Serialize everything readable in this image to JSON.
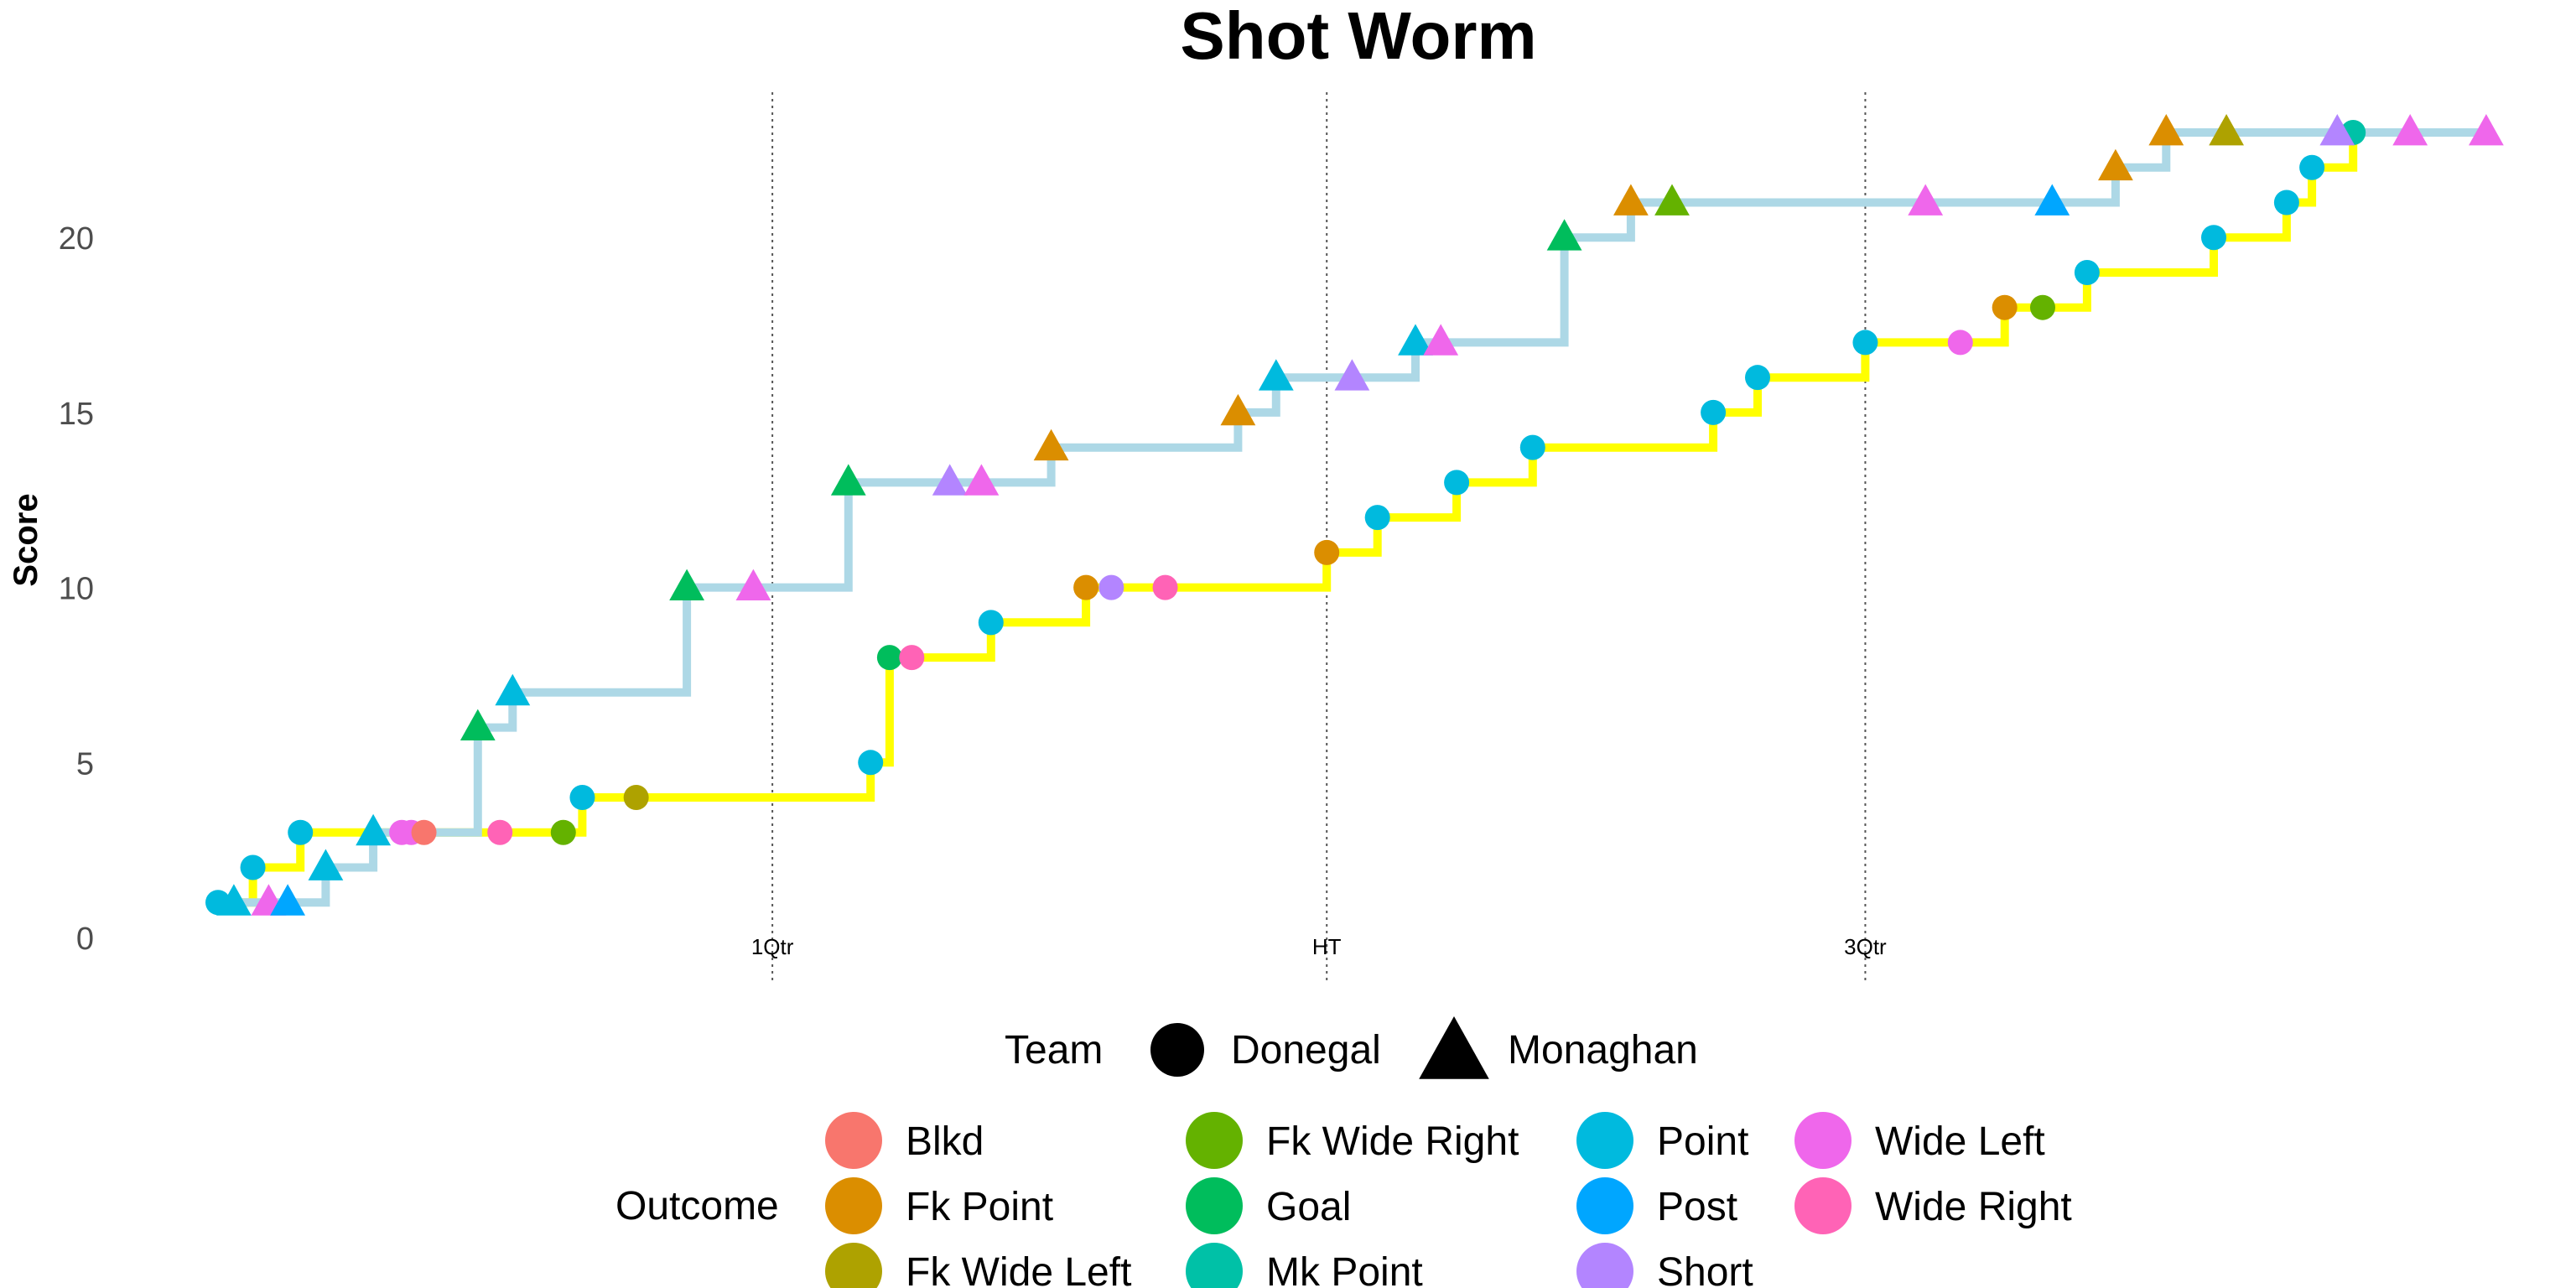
{
  "chart_data": {
    "type": "line",
    "subtype": "step",
    "title": "Shot Worm",
    "xlabel": "",
    "ylabel": "Score",
    "x_unit": "minutes",
    "xlim": [
      0,
      72
    ],
    "ylim": [
      0,
      23
    ],
    "y_ticks": [
      0,
      5,
      10,
      15,
      20
    ],
    "grid": false,
    "x_markers": [
      {
        "label": "1Qtr",
        "x": 17.5
      },
      {
        "label": "HT",
        "x": 35
      },
      {
        "label": "3Qtr",
        "x": 52
      }
    ],
    "team_legend": {
      "title": "Team",
      "entries": [
        {
          "name": "Donegal",
          "shape": "circle"
        },
        {
          "name": "Monaghan",
          "shape": "triangle"
        }
      ]
    },
    "outcome_legend": {
      "title": "Outcome",
      "entries": [
        {
          "name": "Blkd",
          "color": "#F8766D"
        },
        {
          "name": "Fk Point",
          "color": "#DB8E00"
        },
        {
          "name": "Fk Wide Left",
          "color": "#AEA200"
        },
        {
          "name": "Fk Wide Right",
          "color": "#64B200"
        },
        {
          "name": "Goal",
          "color": "#00BD5C"
        },
        {
          "name": "Mk Point",
          "color": "#00C1A7"
        },
        {
          "name": "Point",
          "color": "#00BADE"
        },
        {
          "name": "Post",
          "color": "#00A6FF"
        },
        {
          "name": "Short",
          "color": "#B385FF"
        },
        {
          "name": "Wide Left",
          "color": "#EF67EB"
        },
        {
          "name": "Wide Right",
          "color": "#FF63B6"
        }
      ]
    },
    "series": [
      {
        "name": "Donegal",
        "shape": "circle",
        "line_color": "#FFFF00",
        "points": [
          {
            "x": 0.0,
            "y": 1,
            "outcome": "Point"
          },
          {
            "x": 1.1,
            "y": 2,
            "outcome": "Point"
          },
          {
            "x": 2.6,
            "y": 3,
            "outcome": "Point"
          },
          {
            "x": 5.8,
            "y": 3,
            "outcome": "Wide Left"
          },
          {
            "x": 6.1,
            "y": 3,
            "outcome": "Wide Left"
          },
          {
            "x": 6.5,
            "y": 3,
            "outcome": "Blkd"
          },
          {
            "x": 8.9,
            "y": 3,
            "outcome": "Wide Right"
          },
          {
            "x": 10.9,
            "y": 3,
            "outcome": "Fk Wide Right"
          },
          {
            "x": 11.5,
            "y": 4,
            "outcome": "Point"
          },
          {
            "x": 13.2,
            "y": 4,
            "outcome": "Fk Wide Left"
          },
          {
            "x": 20.6,
            "y": 5,
            "outcome": "Point"
          },
          {
            "x": 21.2,
            "y": 8,
            "outcome": "Goal"
          },
          {
            "x": 21.9,
            "y": 8,
            "outcome": "Wide Right"
          },
          {
            "x": 24.4,
            "y": 9,
            "outcome": "Point"
          },
          {
            "x": 27.4,
            "y": 10,
            "outcome": "Fk Point"
          },
          {
            "x": 28.2,
            "y": 10,
            "outcome": "Short"
          },
          {
            "x": 29.9,
            "y": 10,
            "outcome": "Wide Right"
          },
          {
            "x": 35.0,
            "y": 11,
            "outcome": "Fk Point"
          },
          {
            "x": 36.6,
            "y": 12,
            "outcome": "Point"
          },
          {
            "x": 39.1,
            "y": 13,
            "outcome": "Point"
          },
          {
            "x": 41.5,
            "y": 14,
            "outcome": "Point"
          },
          {
            "x": 47.2,
            "y": 15,
            "outcome": "Point"
          },
          {
            "x": 48.6,
            "y": 16,
            "outcome": "Point"
          },
          {
            "x": 52.0,
            "y": 17,
            "outcome": "Point"
          },
          {
            "x": 55.0,
            "y": 17,
            "outcome": "Wide Left"
          },
          {
            "x": 56.4,
            "y": 18,
            "outcome": "Fk Point"
          },
          {
            "x": 57.6,
            "y": 18,
            "outcome": "Fk Wide Right"
          },
          {
            "x": 59.0,
            "y": 19,
            "outcome": "Point"
          },
          {
            "x": 63.0,
            "y": 20,
            "outcome": "Point"
          },
          {
            "x": 65.3,
            "y": 21,
            "outcome": "Point"
          },
          {
            "x": 66.1,
            "y": 22,
            "outcome": "Point"
          },
          {
            "x": 67.4,
            "y": 23,
            "outcome": "Mk Point"
          }
        ]
      },
      {
        "name": "Monaghan",
        "shape": "triangle",
        "line_color": "#ADD8E6",
        "points": [
          {
            "x": 0.5,
            "y": 1,
            "outcome": "Point"
          },
          {
            "x": 1.6,
            "y": 1,
            "outcome": "Wide Left"
          },
          {
            "x": 2.2,
            "y": 1,
            "outcome": "Post"
          },
          {
            "x": 3.4,
            "y": 2,
            "outcome": "Point"
          },
          {
            "x": 4.9,
            "y": 3,
            "outcome": "Point"
          },
          {
            "x": 8.2,
            "y": 6,
            "outcome": "Goal"
          },
          {
            "x": 9.3,
            "y": 7,
            "outcome": "Point"
          },
          {
            "x": 14.8,
            "y": 10,
            "outcome": "Goal"
          },
          {
            "x": 16.9,
            "y": 10,
            "outcome": "Wide Left"
          },
          {
            "x": 19.9,
            "y": 13,
            "outcome": "Goal"
          },
          {
            "x": 23.1,
            "y": 13,
            "outcome": "Short"
          },
          {
            "x": 24.1,
            "y": 13,
            "outcome": "Wide Left"
          },
          {
            "x": 26.3,
            "y": 14,
            "outcome": "Fk Point"
          },
          {
            "x": 32.2,
            "y": 15,
            "outcome": "Fk Point"
          },
          {
            "x": 33.4,
            "y": 16,
            "outcome": "Point"
          },
          {
            "x": 35.8,
            "y": 16,
            "outcome": "Short"
          },
          {
            "x": 37.8,
            "y": 17,
            "outcome": "Point"
          },
          {
            "x": 38.6,
            "y": 17,
            "outcome": "Wide Left"
          },
          {
            "x": 42.5,
            "y": 20,
            "outcome": "Goal"
          },
          {
            "x": 44.6,
            "y": 21,
            "outcome": "Fk Point"
          },
          {
            "x": 45.9,
            "y": 21,
            "outcome": "Fk Wide Right"
          },
          {
            "x": 53.9,
            "y": 21,
            "outcome": "Wide Left"
          },
          {
            "x": 57.9,
            "y": 21,
            "outcome": "Post"
          },
          {
            "x": 59.9,
            "y": 22,
            "outcome": "Fk Point"
          },
          {
            "x": 61.5,
            "y": 23,
            "outcome": "Fk Point"
          },
          {
            "x": 63.4,
            "y": 23,
            "outcome": "Fk Wide Left"
          },
          {
            "x": 66.9,
            "y": 23,
            "outcome": "Short"
          },
          {
            "x": 69.2,
            "y": 23,
            "outcome": "Wide Left"
          },
          {
            "x": 71.6,
            "y": 23,
            "outcome": "Wide Left"
          }
        ]
      }
    ]
  }
}
